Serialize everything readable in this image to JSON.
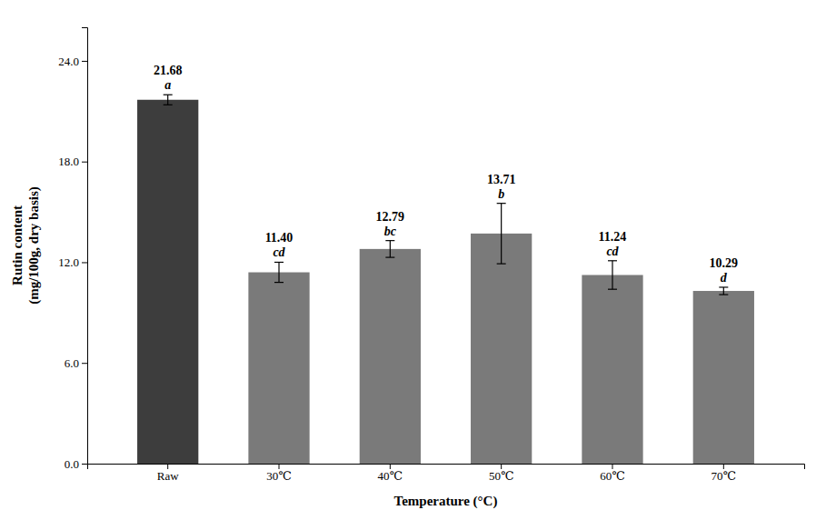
{
  "chart_data": {
    "type": "bar",
    "categories": [
      "Raw",
      "30℃",
      "40℃",
      "50℃",
      "60℃",
      "70℃"
    ],
    "values": [
      21.68,
      11.4,
      12.79,
      13.71,
      11.24,
      10.29
    ],
    "value_labels": [
      "21.68",
      "11.40",
      "12.79",
      "13.71",
      "11.24",
      "10.29"
    ],
    "errors": [
      0.3,
      0.6,
      0.5,
      1.8,
      0.85,
      0.22
    ],
    "sig_labels": [
      "a",
      "cd",
      "bc",
      "b",
      "cd",
      "d"
    ],
    "colors": [
      "#3d3d3d",
      "#7a7a7a",
      "#7a7a7a",
      "#7a7a7a",
      "#7a7a7a",
      "#7a7a7a"
    ],
    "xlabel": "Temperature (°C)",
    "ylabel": "Rutin content\n(mg/100g, dry basis)",
    "ylim": [
      0,
      26.0
    ],
    "yticks": [
      {
        "value": 0.0,
        "label": "0.0"
      },
      {
        "value": 6.0,
        "label": "6.0"
      },
      {
        "value": 12.0,
        "label": "12.0"
      },
      {
        "value": 18.0,
        "label": "18.0"
      },
      {
        "value": 24.0,
        "label": "24.0"
      }
    ],
    "grid": false,
    "data_labels": true
  }
}
